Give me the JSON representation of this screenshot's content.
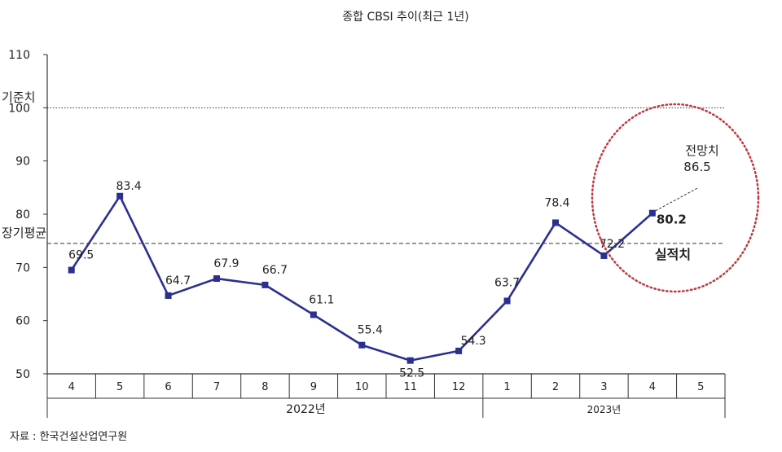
{
  "chart_data": {
    "type": "line",
    "title": "종합 CBSI 추이(최근 1년)",
    "categories": [
      "4",
      "5",
      "6",
      "7",
      "8",
      "9",
      "10",
      "11",
      "12",
      "1",
      "2",
      "3",
      "4",
      "5"
    ],
    "year_groups": [
      {
        "label": "2022년",
        "from": 0,
        "to": 8
      },
      {
        "label": "2023년",
        "from": 9,
        "to": 13
      }
    ],
    "series": [
      {
        "values": [
          69.5,
          83.4,
          64.7,
          67.9,
          66.7,
          61.1,
          55.4,
          52.5,
          54.3,
          63.7,
          78.4,
          72.2,
          80.2,
          null
        ],
        "labels": [
          "69.5",
          "83.4",
          "64.7",
          "67.9",
          "66.7",
          "61.1",
          "55.4",
          "52.5",
          "54.3",
          "63.7",
          "78.4",
          "72.2",
          "80.2",
          ""
        ],
        "color": "#2b2f8f"
      }
    ],
    "forecast": {
      "label": "전망치",
      "value_label": "86.5",
      "value": 86.5
    },
    "actual_label": "실적치",
    "reference_lines": [
      {
        "label": "기준치",
        "value": 100,
        "style": "dotted"
      },
      {
        "label": "장기평균",
        "value": 74.5,
        "style": "dashed"
      }
    ],
    "yticks": [
      "110",
      "100",
      "90",
      "80",
      "70",
      "60",
      "50"
    ],
    "ylim": [
      50,
      110
    ],
    "grid": false,
    "source": "자료 : 한국건설산업연구원",
    "highlight_color": "#c0393f"
  }
}
